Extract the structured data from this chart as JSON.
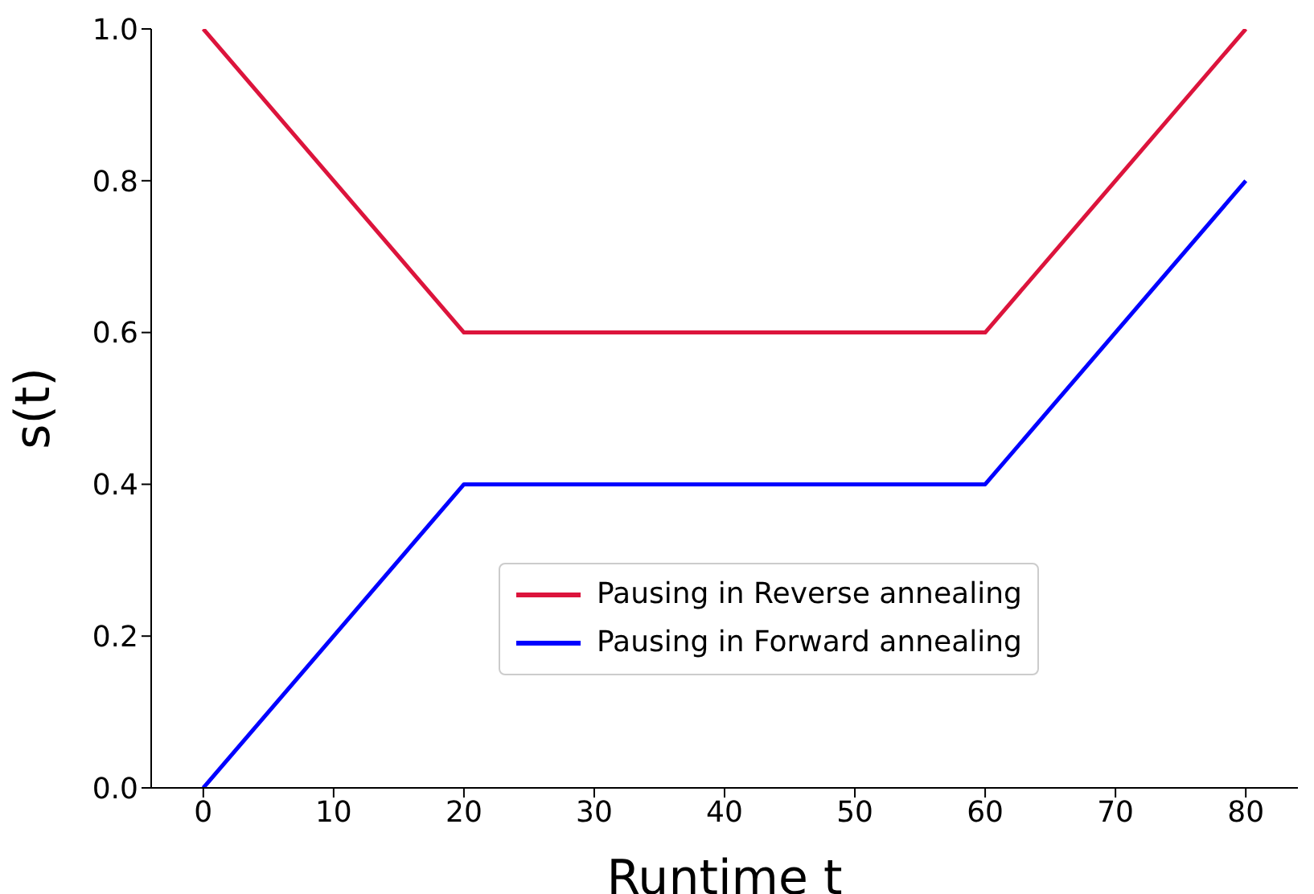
{
  "chart_data": {
    "type": "line",
    "xlabel": "Runtime t",
    "ylabel": "s(t)",
    "xlim": [
      -4,
      84
    ],
    "xticks": [
      0,
      10,
      20,
      30,
      40,
      50,
      60,
      70,
      80
    ],
    "ylim": [
      0,
      1
    ],
    "yticks": [
      {
        "value": 0,
        "label": "0.0"
      },
      {
        "value": 0.2,
        "label": "0.2"
      },
      {
        "value": 0.4,
        "label": "0.4"
      },
      {
        "value": 0.6,
        "label": "0.6"
      },
      {
        "value": 0.8,
        "label": "0.8"
      },
      {
        "value": 1,
        "label": "1.0"
      }
    ],
    "grid": false,
    "legend": "bottom right",
    "marker": "none",
    "line_style": "solid",
    "series": [
      {
        "name": "Pausing in Reverse annealing",
        "color": "#dc143c",
        "x": [
          0,
          20,
          60,
          80
        ],
        "values": [
          1,
          0.6,
          0.6,
          1
        ]
      },
      {
        "name": "Pausing in Forward annealing",
        "color": "#0000ff",
        "x": [
          0,
          20,
          60,
          80
        ],
        "values": [
          0,
          0.4,
          0.4,
          0.8
        ]
      }
    ]
  }
}
